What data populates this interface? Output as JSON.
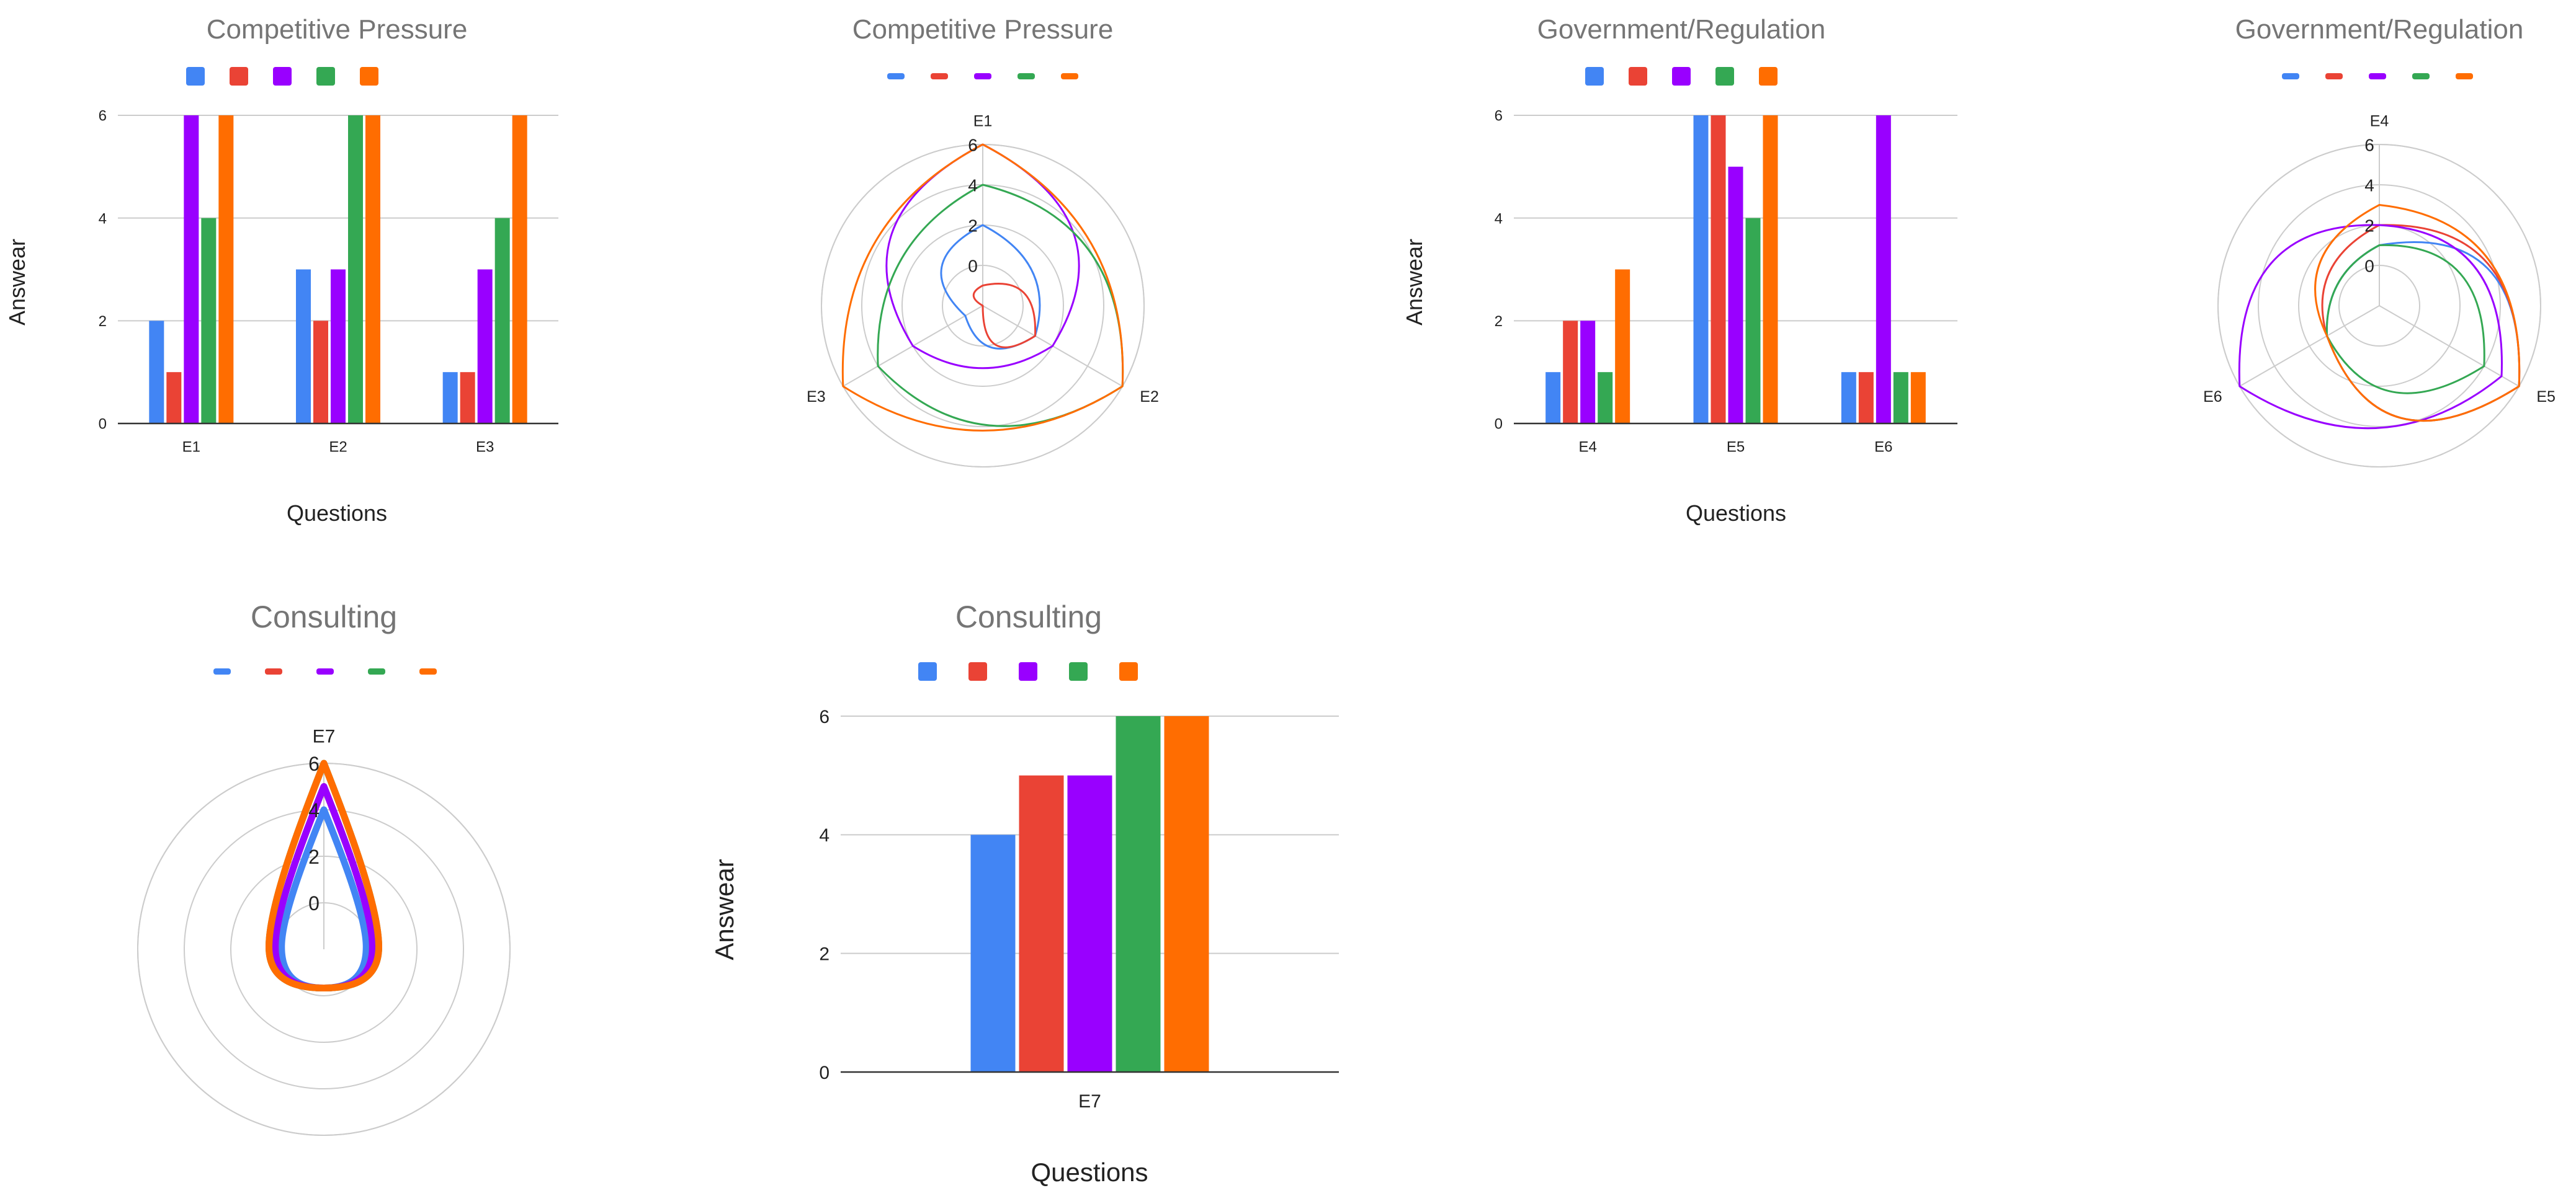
{
  "palette": {
    "series": [
      "#4285f4",
      "#ea4335",
      "#9900ff",
      "#34a853",
      "#ff6d01"
    ],
    "title": "#757575",
    "text": "#222222",
    "grid": "#cccccc",
    "axis": "#333333"
  },
  "chart_data": [
    {
      "id": "competitive-bar",
      "type": "bar",
      "title": "Competitive Pressure",
      "xlabel": "Questions",
      "ylabel": "Answear",
      "categories": [
        "E1",
        "E2",
        "E3"
      ],
      "yticks": [
        "0",
        "2",
        "4",
        "6"
      ],
      "ylim": [
        0,
        6
      ],
      "legend": "top",
      "series": [
        {
          "name": "",
          "values": [
            2,
            3,
            1
          ]
        },
        {
          "name": "",
          "values": [
            1,
            2,
            1
          ]
        },
        {
          "name": "",
          "values": [
            6,
            3,
            3
          ]
        },
        {
          "name": "",
          "values": [
            4,
            6,
            4
          ]
        },
        {
          "name": "",
          "values": [
            6,
            6,
            6
          ]
        }
      ]
    },
    {
      "id": "competitive-radar",
      "type": "radar",
      "title": "Competitive Pressure",
      "categories": [
        "E1",
        "E2",
        "E3"
      ],
      "rticks": [
        "0",
        "2",
        "4",
        "6"
      ],
      "rlim": [
        -2,
        6
      ],
      "legend": "top",
      "series": [
        {
          "name": "",
          "values": [
            2,
            1,
            -1
          ]
        },
        {
          "name": "",
          "values": [
            -1,
            1,
            -2
          ]
        },
        {
          "name": "",
          "values": [
            6,
            2,
            2
          ]
        },
        {
          "name": "",
          "values": [
            4,
            6,
            4
          ]
        },
        {
          "name": "",
          "values": [
            6,
            6,
            6
          ]
        }
      ]
    },
    {
      "id": "government-bar",
      "type": "bar",
      "title": "Government/Regulation",
      "xlabel": "Questions",
      "ylabel": "Answear",
      "categories": [
        "E4",
        "E5",
        "E6"
      ],
      "yticks": [
        "0",
        "2",
        "4",
        "6"
      ],
      "ylim": [
        0,
        6
      ],
      "legend": "top",
      "series": [
        {
          "name": "",
          "values": [
            1,
            6,
            1
          ]
        },
        {
          "name": "",
          "values": [
            2,
            6,
            1
          ]
        },
        {
          "name": "",
          "values": [
            2,
            5,
            6
          ]
        },
        {
          "name": "",
          "values": [
            1,
            4,
            1
          ]
        },
        {
          "name": "",
          "values": [
            3,
            6,
            1
          ]
        }
      ]
    },
    {
      "id": "government-radar",
      "type": "radar",
      "title": "Government/Regulation",
      "categories": [
        "E4",
        "E5",
        "E6"
      ],
      "rticks": [
        "0",
        "2",
        "4",
        "6"
      ],
      "rlim": [
        -2,
        6
      ],
      "legend": "top",
      "series": [
        {
          "name": "",
          "values": [
            1,
            6,
            1
          ]
        },
        {
          "name": "",
          "values": [
            2,
            6,
            1
          ]
        },
        {
          "name": "",
          "values": [
            2,
            5,
            6
          ]
        },
        {
          "name": "",
          "values": [
            1,
            4,
            1
          ]
        },
        {
          "name": "",
          "values": [
            3,
            6,
            1
          ]
        }
      ]
    },
    {
      "id": "consulting-radar",
      "type": "radar",
      "title": "Consulting",
      "categories": [
        "E7"
      ],
      "rticks": [
        "0",
        "2",
        "4",
        "6"
      ],
      "rlim": [
        -2,
        6
      ],
      "legend": "top",
      "series": [
        {
          "name": "",
          "values": [
            4
          ]
        },
        {
          "name": "",
          "values": [
            5
          ]
        },
        {
          "name": "",
          "values": [
            5
          ]
        },
        {
          "name": "",
          "values": [
            6
          ]
        },
        {
          "name": "",
          "values": [
            6
          ]
        }
      ]
    },
    {
      "id": "consulting-bar",
      "type": "bar",
      "title": "Consulting",
      "xlabel": "Questions",
      "ylabel": "Answear",
      "categories": [
        "E7"
      ],
      "yticks": [
        "0",
        "2",
        "4",
        "6"
      ],
      "ylim": [
        0,
        6
      ],
      "legend": "top",
      "series": [
        {
          "name": "",
          "values": [
            4
          ]
        },
        {
          "name": "",
          "values": [
            5
          ]
        },
        {
          "name": "",
          "values": [
            5
          ]
        },
        {
          "name": "",
          "values": [
            6
          ]
        },
        {
          "name": "",
          "values": [
            6
          ]
        }
      ]
    }
  ]
}
